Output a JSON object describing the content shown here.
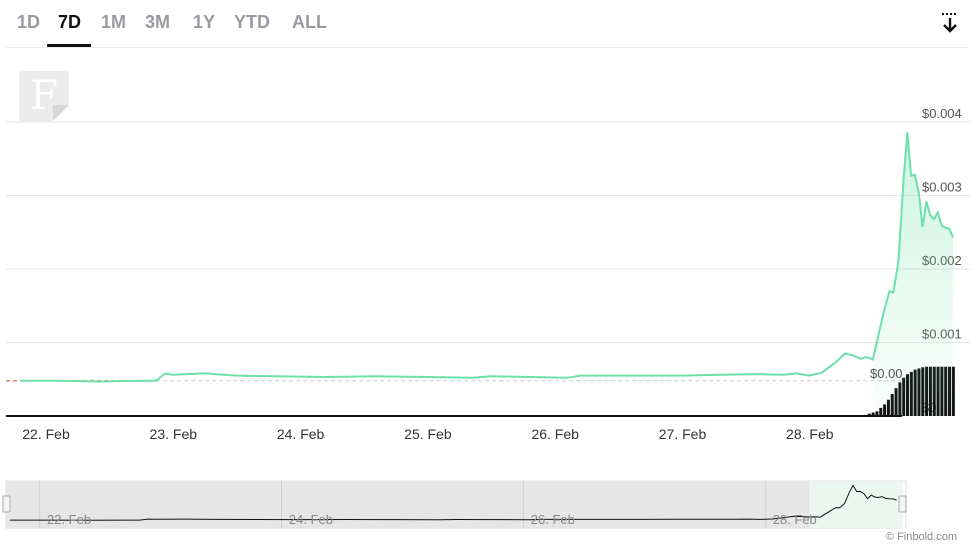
{
  "tabs": [
    {
      "label": "1D"
    },
    {
      "label": "7D"
    },
    {
      "label": "1M"
    },
    {
      "label": "3M"
    },
    {
      "label": "1Y"
    },
    {
      "label": "YTD"
    },
    {
      "label": "ALL"
    }
  ],
  "active_tab": "7D",
  "logo_letter": "F",
  "credit": "© Finbold.com",
  "colors": {
    "line": "#6ee0aa",
    "volume": "#111111",
    "reference": "#e0857a"
  },
  "chart_data": {
    "type": "line",
    "title": "",
    "xlabel": "",
    "ylabel": "",
    "x_ticks": [
      "22. Feb",
      "23. Feb",
      "24. Feb",
      "25. Feb",
      "26. Feb",
      "27. Feb",
      "28. Feb"
    ],
    "y_ticks": [
      "$0.004",
      "$0.003",
      "$0.002",
      "$0.001",
      "$0"
    ],
    "ylim": [
      0,
      0.004
    ],
    "x_range_days": [
      0,
      7.05
    ],
    "current_value_label": "$0.00",
    "grid": true,
    "series": [
      {
        "values": [
          [
            0.0,
            0.00048
          ],
          [
            0.3,
            0.00048
          ],
          [
            0.6,
            0.00047
          ],
          [
            1.0,
            0.00048
          ],
          [
            1.07,
            0.00048
          ],
          [
            1.14,
            0.00058
          ],
          [
            1.2,
            0.00056
          ],
          [
            1.45,
            0.00058
          ],
          [
            1.7,
            0.00055
          ],
          [
            2.0,
            0.00054
          ],
          [
            2.4,
            0.00053
          ],
          [
            2.8,
            0.00054
          ],
          [
            3.2,
            0.00053
          ],
          [
            3.55,
            0.00052
          ],
          [
            3.7,
            0.00054
          ],
          [
            4.0,
            0.00053
          ],
          [
            4.3,
            0.00052
          ],
          [
            4.4,
            0.00055
          ],
          [
            4.8,
            0.00055
          ],
          [
            5.2,
            0.00055
          ],
          [
            5.5,
            0.00056
          ],
          [
            5.8,
            0.00057
          ],
          [
            6.0,
            0.00056
          ],
          [
            6.1,
            0.00058
          ],
          [
            6.2,
            0.00055
          ],
          [
            6.3,
            0.00059
          ],
          [
            6.4,
            0.00072
          ],
          [
            6.48,
            0.00085
          ],
          [
            6.55,
            0.00082
          ],
          [
            6.6,
            0.00078
          ],
          [
            6.65,
            0.0008
          ],
          [
            6.7,
            0.00077
          ],
          [
            6.78,
            0.00138
          ],
          [
            6.83,
            0.0017
          ],
          [
            6.86,
            0.00168
          ],
          [
            6.9,
            0.0021
          ],
          [
            6.94,
            0.0032
          ],
          [
            6.97,
            0.00386
          ],
          [
            7.0,
            0.00327
          ],
          [
            7.03,
            0.00328
          ],
          [
            7.06,
            0.00305
          ],
          [
            7.09,
            0.00257
          ],
          [
            7.12,
            0.00292
          ],
          [
            7.15,
            0.00273
          ],
          [
            7.18,
            0.00268
          ],
          [
            7.21,
            0.00277
          ],
          [
            7.24,
            0.00259
          ],
          [
            7.27,
            0.00256
          ],
          [
            7.3,
            0.00255
          ],
          [
            7.33,
            0.00243
          ]
        ]
      }
    ],
    "reference_value": 0.00048,
    "volume_series": {
      "x_start": 6.6,
      "x_step": 0.03,
      "values": [
        0.01,
        0.02,
        0.04,
        0.06,
        0.08,
        0.14,
        0.2,
        0.28,
        0.38,
        0.48,
        0.58,
        0.66,
        0.72,
        0.76,
        0.8,
        0.82,
        0.84,
        0.85,
        0.85,
        0.85,
        0.85,
        0.85,
        0.85,
        0.85,
        0.85
      ]
    },
    "navigator_ticks": [
      "22. Feb",
      "24. Feb",
      "26. Feb",
      "28. Feb"
    ]
  }
}
